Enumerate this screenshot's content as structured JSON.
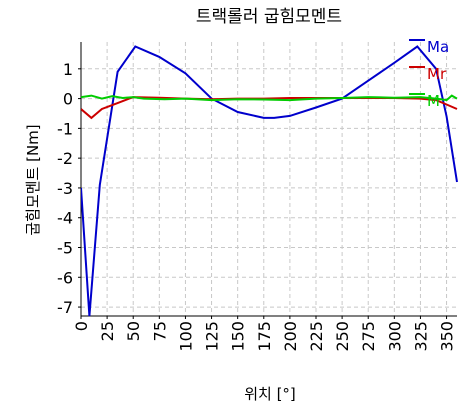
{
  "chart_data": {
    "type": "line",
    "title": "트랙롤러 굽힘모멘트",
    "xlabel": "위치 [°]",
    "ylabel": "굽힘모멘트 [Nm]",
    "xlim": [
      0,
      360
    ],
    "ylim": [
      -7.3,
      1.9
    ],
    "grid": true,
    "legend_position": "right",
    "x_ticks": [
      0,
      25,
      50,
      75,
      100,
      125,
      150,
      175,
      200,
      225,
      250,
      275,
      300,
      325,
      350
    ],
    "y_ticks": [
      1,
      0,
      -1,
      -2,
      -3,
      -4,
      -5,
      -6,
      -7
    ],
    "series": [
      {
        "name": "Ma",
        "color": "#0000cc",
        "x": [
          0,
          8,
          18,
          35,
          52,
          75,
          100,
          125,
          150,
          175,
          185,
          200,
          225,
          250,
          275,
          300,
          322,
          340,
          350,
          360
        ],
        "y": [
          -3.0,
          -7.3,
          -2.9,
          0.9,
          1.75,
          1.4,
          0.85,
          0.0,
          -0.45,
          -0.65,
          -0.65,
          -0.58,
          -0.3,
          0.0,
          0.6,
          1.2,
          1.75,
          1.0,
          -0.6,
          -2.8
        ]
      },
      {
        "name": "Mr",
        "color": "#cc0000",
        "x": [
          0,
          10,
          20,
          35,
          50,
          75,
          100,
          125,
          150,
          175,
          200,
          225,
          250,
          275,
          300,
          325,
          340,
          350,
          360
        ],
        "y": [
          -0.35,
          -0.65,
          -0.35,
          -0.15,
          0.05,
          0.03,
          0.0,
          -0.02,
          0.0,
          0.0,
          0.02,
          0.02,
          0.02,
          0.02,
          0.02,
          0.0,
          -0.05,
          -0.2,
          -0.35
        ]
      },
      {
        "name": "M",
        "color": "#00cc00",
        "x": [
          0,
          10,
          20,
          30,
          40,
          50,
          60,
          80,
          100,
          125,
          150,
          175,
          200,
          225,
          250,
          275,
          300,
          325,
          340,
          350,
          355,
          360
        ],
        "y": [
          0.05,
          0.1,
          0.0,
          0.08,
          0.02,
          0.05,
          0.0,
          -0.02,
          0.0,
          -0.05,
          -0.02,
          -0.03,
          -0.05,
          0.0,
          0.02,
          0.05,
          0.03,
          0.05,
          0.0,
          -0.05,
          0.1,
          0.0
        ]
      }
    ]
  }
}
